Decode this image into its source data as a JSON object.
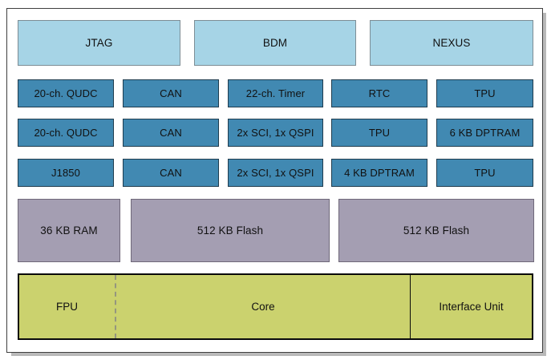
{
  "diagram": {
    "debug_blocks": [
      {
        "label": "JTAG"
      },
      {
        "label": "BDM"
      },
      {
        "label": "NEXUS"
      }
    ],
    "peripheral_rows": [
      {
        "cells": [
          "20-ch. QUDC",
          "CAN",
          "22-ch. Timer",
          "RTC",
          "TPU"
        ]
      },
      {
        "cells": [
          "20-ch. QUDC",
          "CAN",
          "2x SCI, 1x QSPI",
          "TPU",
          "6 KB DPTRAM"
        ]
      },
      {
        "cells": [
          "J1850",
          "CAN",
          "2x SCI, 1x QSPI",
          "4 KB DPTRAM",
          "TPU"
        ]
      }
    ],
    "memory_blocks": [
      {
        "label": "36 KB RAM"
      },
      {
        "label": "512 KB Flash"
      },
      {
        "label": "512 KB Flash"
      }
    ],
    "core_sections": [
      {
        "label": "FPU"
      },
      {
        "label": "Core"
      },
      {
        "label": "Interface Unit"
      }
    ],
    "colors": {
      "debug_fill": "#a6d4e6",
      "peripheral_fill": "#4189b2",
      "memory_fill": "#a49eb2",
      "core_fill": "#cbd26e",
      "frame_border": "#3f3f3f",
      "shadow": "#b9b9b9",
      "text": "#111111"
    }
  }
}
